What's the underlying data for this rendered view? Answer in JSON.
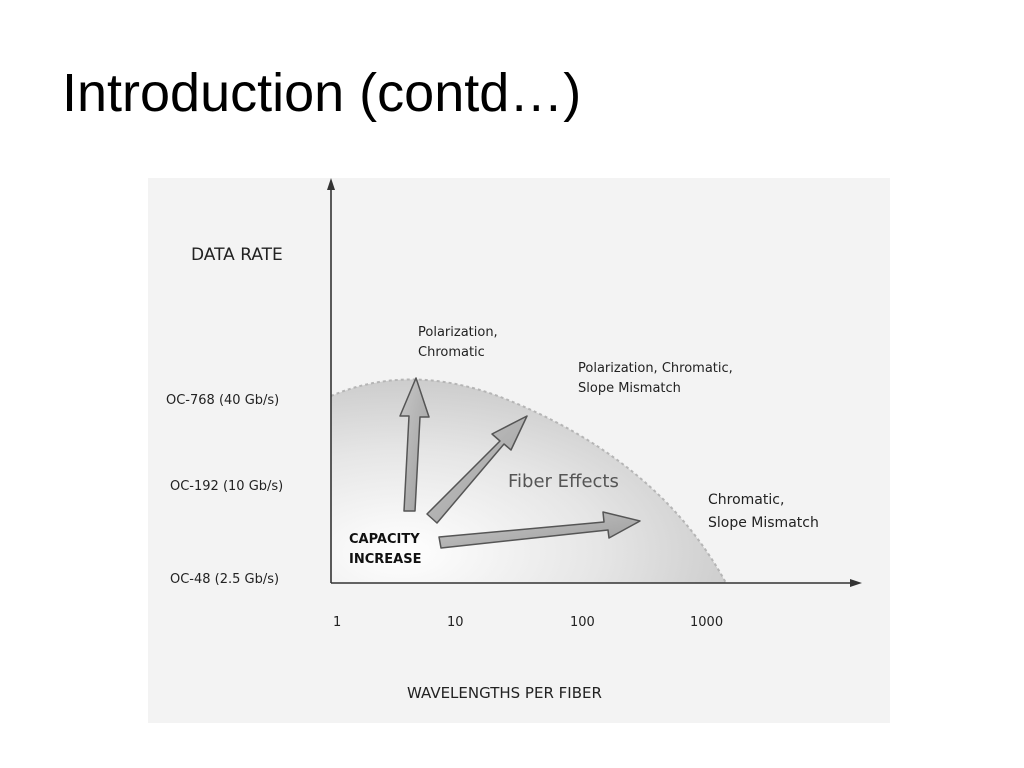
{
  "slide": {
    "title": "Introduction (contd…)"
  },
  "figure": {
    "y_axis_title": "DATA RATE",
    "x_axis_title": "WAVELENGTHS PER FIBER",
    "y_ticks": [
      "OC-768 (40 Gb/s)",
      "OC-192 (10 Gb/s)",
      "OC-48 (2.5 Gb/s)"
    ],
    "x_ticks": [
      "1",
      "10",
      "100",
      "1000"
    ],
    "region_label": "Fiber Effects",
    "capacity_label": [
      "CAPACITY",
      "INCREASE"
    ],
    "annotations": {
      "vertical": [
        "Polarization,",
        "Chromatic"
      ],
      "diagonal": [
        "Polarization, Chromatic,",
        "Slope Mismatch"
      ],
      "horizontal": [
        "Chromatic,",
        "Slope Mismatch"
      ]
    },
    "colors": {
      "background": "#f2f2f2",
      "region": "#d9d9d9",
      "arrow_fill": "#b4b4b4"
    }
  }
}
